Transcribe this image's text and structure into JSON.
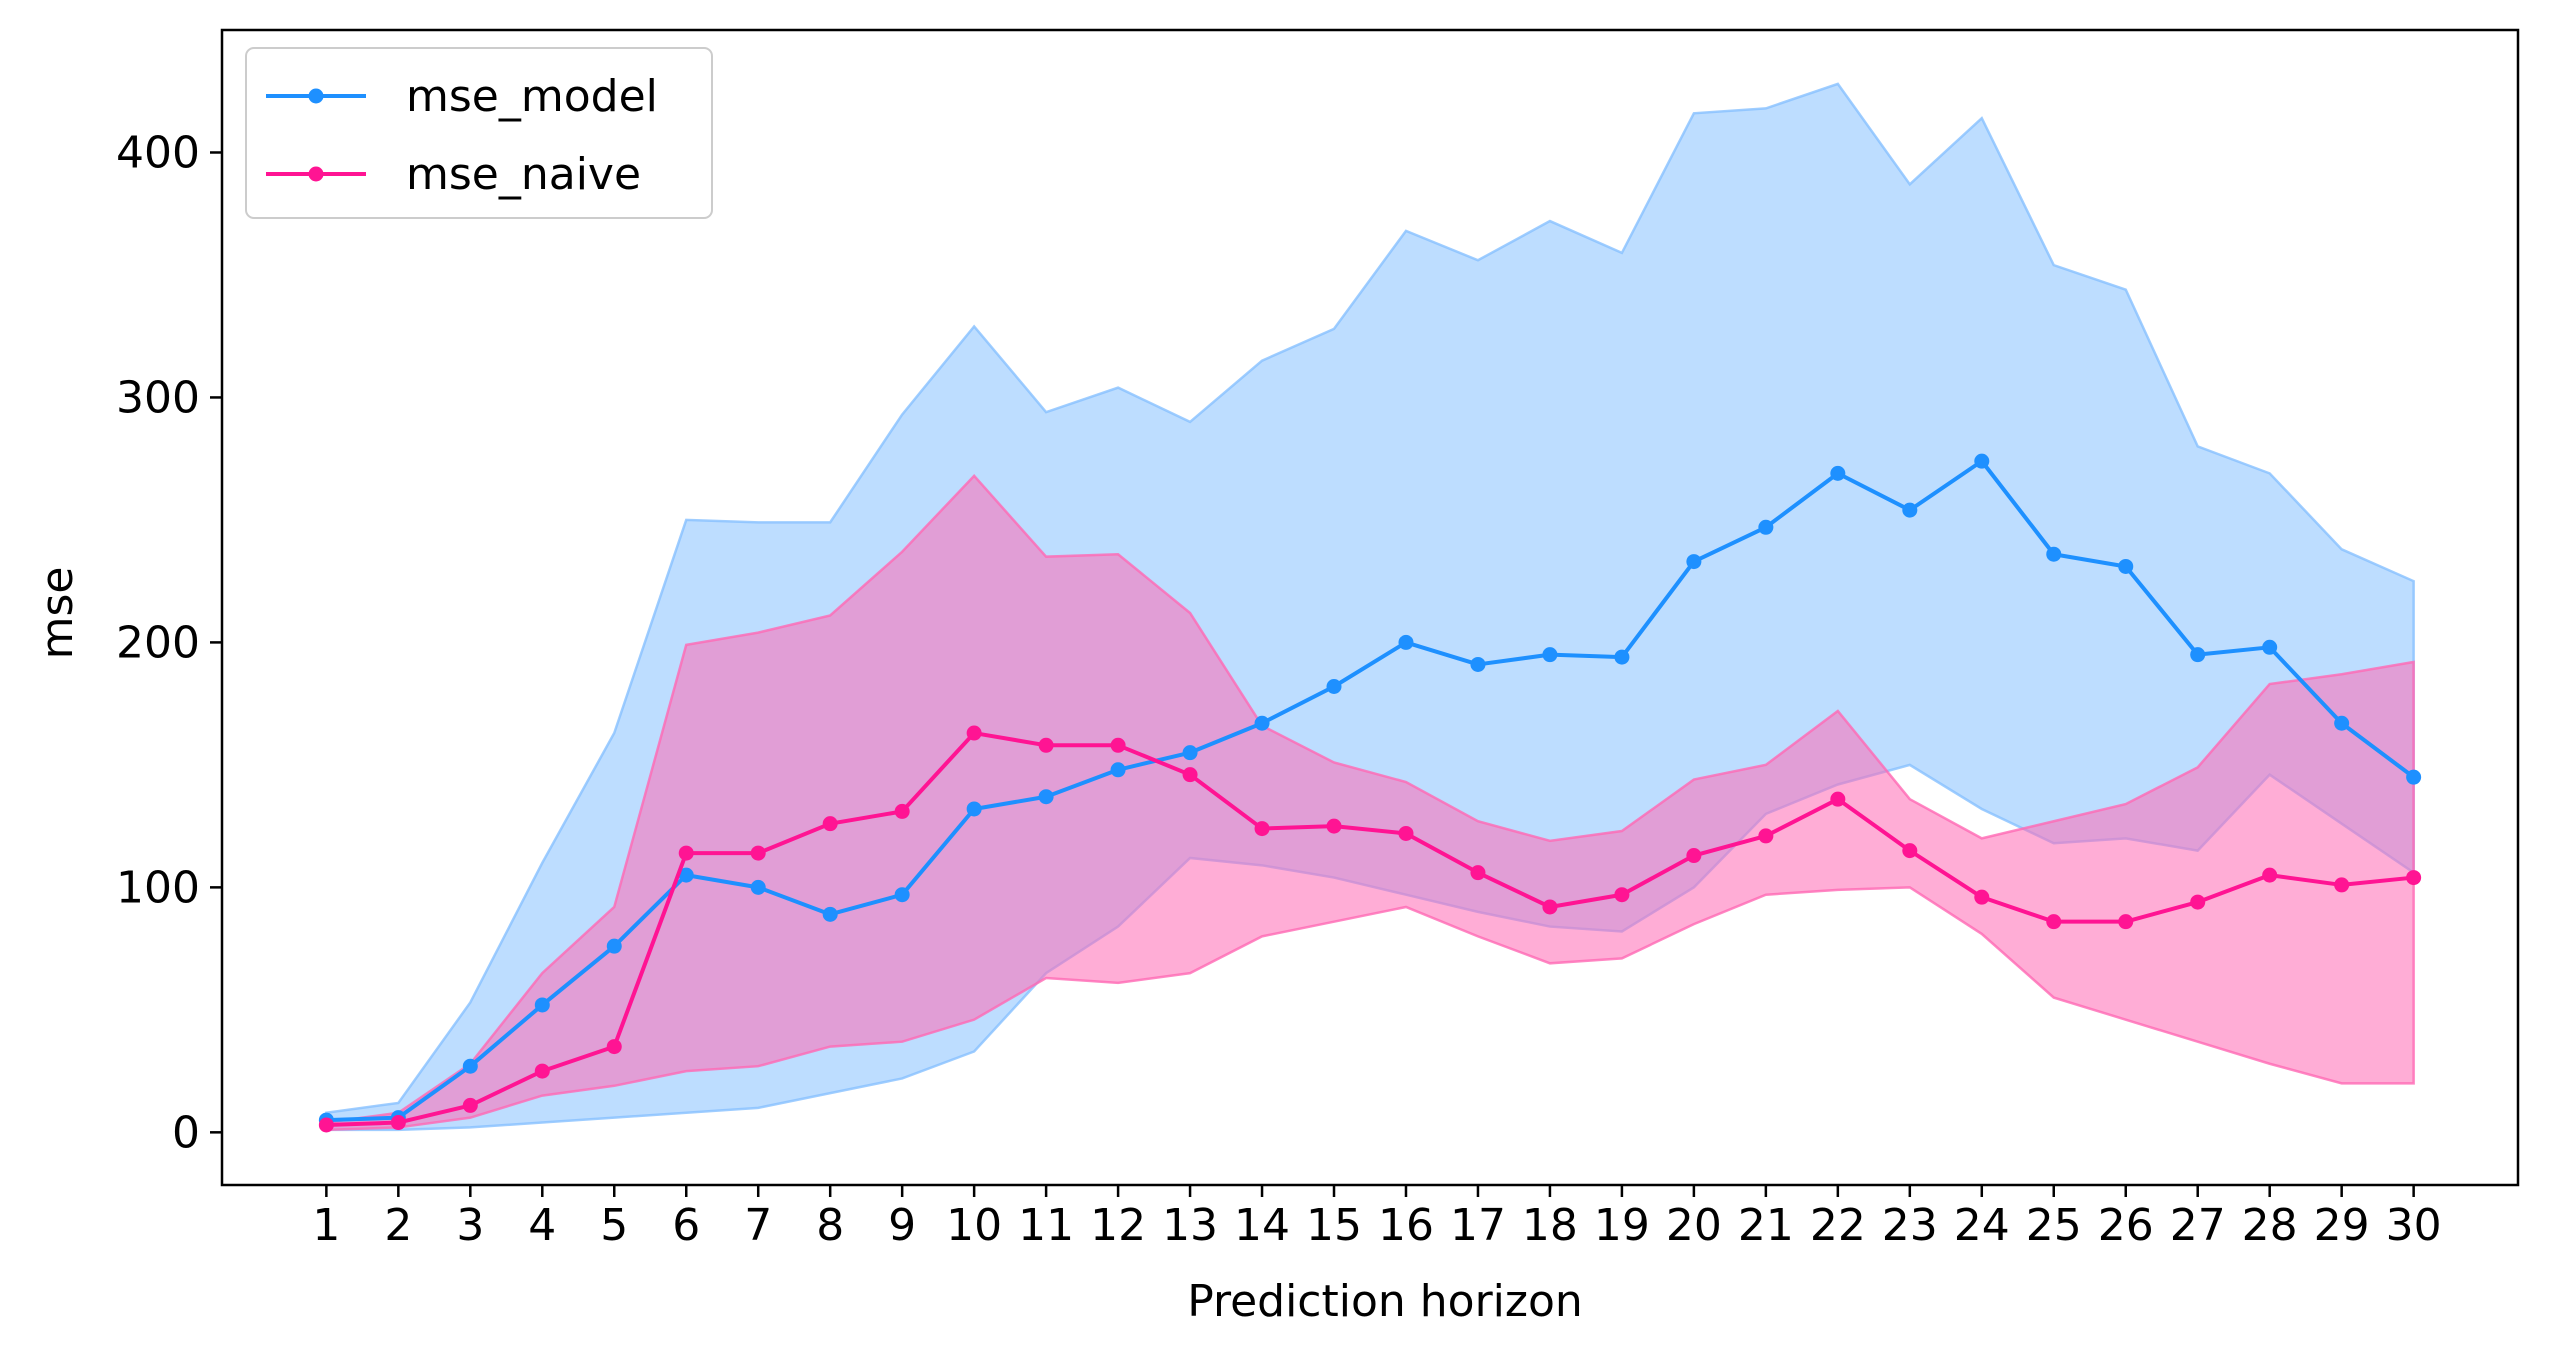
{
  "chart_data": {
    "type": "line",
    "title": "",
    "xlabel": "Prediction horizon",
    "ylabel": "mse",
    "x": [
      1,
      2,
      3,
      4,
      5,
      6,
      7,
      8,
      9,
      10,
      11,
      12,
      13,
      14,
      15,
      16,
      17,
      18,
      19,
      20,
      21,
      22,
      23,
      24,
      25,
      26,
      27,
      28,
      29,
      30
    ],
    "xlim": [
      -0.45,
      31.45
    ],
    "ylim": [
      -21.5,
      450
    ],
    "yticks": [
      0,
      100,
      200,
      300,
      400
    ],
    "grid": false,
    "legend": "top-left",
    "series": [
      {
        "name": "mse_model",
        "color": "#1e90ff",
        "band_color": "#87c1ff",
        "values": [
          5,
          6,
          27,
          52,
          76,
          105,
          100,
          89,
          97,
          132,
          137,
          148,
          155,
          167,
          182,
          200,
          191,
          195,
          194,
          233,
          247,
          269,
          254,
          274,
          236,
          231,
          195,
          198,
          167,
          145
        ],
        "upper": [
          8,
          12,
          53,
          110,
          163,
          250,
          249,
          249,
          293,
          329,
          294,
          304,
          290,
          315,
          328,
          368,
          356,
          372,
          359,
          416,
          418,
          428,
          387,
          414,
          354,
          344,
          280,
          269,
          238,
          225
        ],
        "lower": [
          1,
          1,
          2,
          4,
          6,
          8,
          10,
          16,
          22,
          33,
          65,
          84,
          112,
          109,
          104,
          97,
          90,
          84,
          82,
          100,
          130,
          142,
          150,
          132,
          118,
          120,
          115,
          146,
          126,
          106
        ]
      },
      {
        "name": "mse_naive",
        "color": "#ff1493",
        "band_color": "#ff69b4",
        "values": [
          3,
          4,
          11,
          25,
          35,
          114,
          114,
          126,
          131,
          163,
          158,
          158,
          146,
          124,
          125,
          122,
          106,
          92,
          97,
          113,
          121,
          136,
          115,
          96,
          86,
          86,
          94,
          105,
          101,
          104
        ],
        "upper": [
          4,
          8,
          28,
          65,
          92,
          199,
          204,
          211,
          237,
          268,
          235,
          236,
          212,
          166,
          151,
          143,
          127,
          119,
          123,
          144,
          150,
          172,
          136,
          120,
          127,
          134,
          149,
          183,
          187,
          192
        ],
        "lower": [
          1,
          2,
          6,
          15,
          19,
          25,
          27,
          35,
          37,
          46,
          63,
          61,
          65,
          80,
          86,
          92,
          80,
          69,
          71,
          85,
          97,
          99,
          100,
          81,
          55,
          46,
          37,
          28,
          20,
          20
        ]
      }
    ]
  }
}
